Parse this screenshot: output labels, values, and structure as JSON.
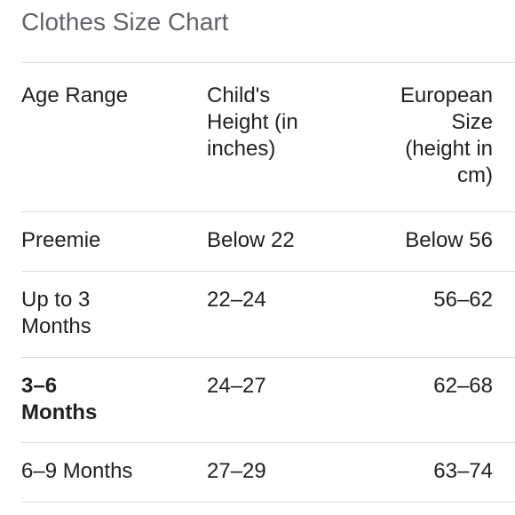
{
  "header": {
    "title": "Clothes Size Chart"
  },
  "table": {
    "columns": [
      "Age Range",
      "Child's Height (in inches)",
      "European Size (height in cm)"
    ],
    "rows": [
      [
        "Preemie",
        "Below 22",
        "Below 56"
      ],
      [
        "Up to 3 Months",
        "22–24",
        "56–62"
      ],
      [
        "3–6 Months",
        "24–27",
        "62–68"
      ],
      [
        "6–9 Months",
        "27–29",
        "63–74"
      ]
    ]
  }
}
